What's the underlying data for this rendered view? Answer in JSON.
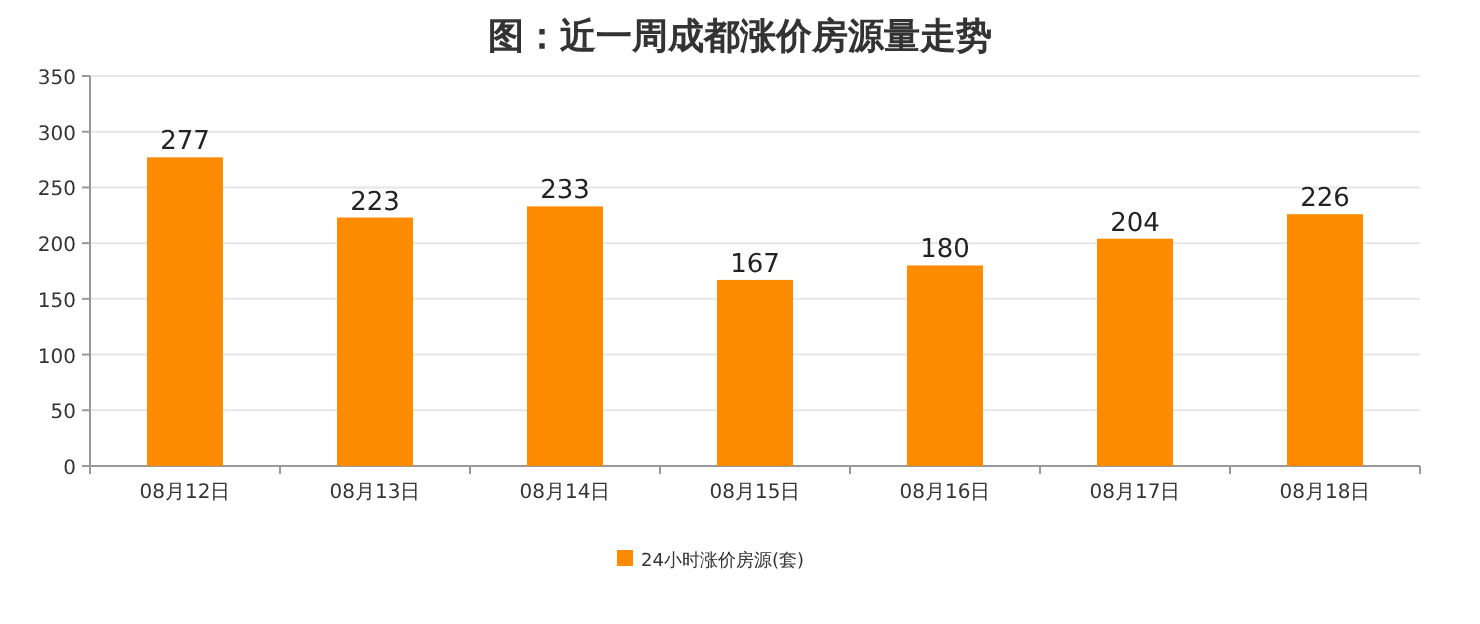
{
  "chart_data": {
    "type": "bar",
    "title": "图：近一周成都涨价房源量走势",
    "categories": [
      "08月12日",
      "08月13日",
      "08月14日",
      "08月15日",
      "08月16日",
      "08月17日",
      "08月18日"
    ],
    "series": [
      {
        "name": "24小时涨价房源(套)",
        "color": "#ff8c00",
        "values": [
          277,
          223,
          233,
          167,
          180,
          204,
          226
        ]
      }
    ],
    "ylim": [
      0,
      350
    ],
    "yticks": [
      0,
      50,
      100,
      150,
      200,
      250,
      300,
      350
    ],
    "grid": "y",
    "legend": "bottom",
    "data_labels": true
  }
}
